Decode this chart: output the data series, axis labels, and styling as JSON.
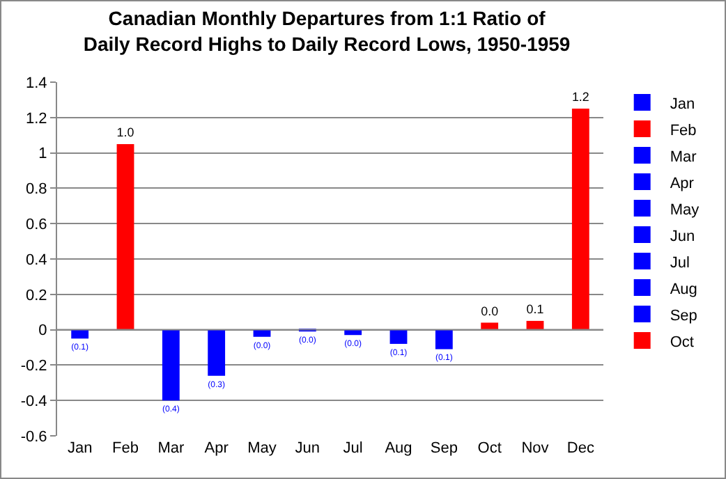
{
  "chart_data": {
    "type": "bar",
    "title": "Canadian Monthly Departures from 1:1 Ratio of\nDaily Record Highs to Daily Record Lows, 1950-1959",
    "categories": [
      "Jan",
      "Feb",
      "Mar",
      "Apr",
      "May",
      "Jun",
      "Jul",
      "Aug",
      "Sep",
      "Oct",
      "Nov",
      "Dec"
    ],
    "series": [
      {
        "name": "Jan",
        "color": "#0000ff",
        "values": [
          -0.05,
          null,
          null,
          null,
          null,
          null,
          null,
          null,
          null,
          null,
          null,
          null
        ],
        "value_labels": [
          "(0.1)",
          null,
          null,
          null,
          null,
          null,
          null,
          null,
          null,
          null,
          null,
          null
        ]
      },
      {
        "name": "Feb",
        "color": "#ff0000",
        "values": [
          null,
          1.05,
          null,
          null,
          null,
          null,
          null,
          null,
          null,
          null,
          null,
          null
        ],
        "value_labels": [
          null,
          "1.0",
          null,
          null,
          null,
          null,
          null,
          null,
          null,
          null,
          null,
          null
        ]
      },
      {
        "name": "Mar",
        "color": "#0000ff",
        "values": [
          null,
          null,
          -0.4,
          null,
          null,
          null,
          null,
          null,
          null,
          null,
          null,
          null
        ],
        "value_labels": [
          null,
          null,
          "(0.4)",
          null,
          null,
          null,
          null,
          null,
          null,
          null,
          null,
          null
        ]
      },
      {
        "name": "Apr",
        "color": "#0000ff",
        "values": [
          null,
          null,
          null,
          -0.26,
          null,
          null,
          null,
          null,
          null,
          null,
          null,
          null
        ],
        "value_labels": [
          null,
          null,
          null,
          "(0.3)",
          null,
          null,
          null,
          null,
          null,
          null,
          null,
          null
        ]
      },
      {
        "name": "May",
        "color": "#0000ff",
        "values": [
          null,
          null,
          null,
          null,
          -0.04,
          null,
          null,
          null,
          null,
          null,
          null,
          null
        ],
        "value_labels": [
          null,
          null,
          null,
          null,
          "(0.0)",
          null,
          null,
          null,
          null,
          null,
          null,
          null
        ]
      },
      {
        "name": "Jun",
        "color": "#0000ff",
        "values": [
          null,
          null,
          null,
          null,
          null,
          -0.01,
          null,
          null,
          null,
          null,
          null,
          null
        ],
        "value_labels": [
          null,
          null,
          null,
          null,
          null,
          "(0.0)",
          null,
          null,
          null,
          null,
          null,
          null
        ]
      },
      {
        "name": "Jul",
        "color": "#0000ff",
        "values": [
          null,
          null,
          null,
          null,
          null,
          null,
          -0.03,
          null,
          null,
          null,
          null,
          null
        ],
        "value_labels": [
          null,
          null,
          null,
          null,
          null,
          null,
          "(0.0)",
          null,
          null,
          null,
          null,
          null
        ]
      },
      {
        "name": "Aug",
        "color": "#0000ff",
        "values": [
          null,
          null,
          null,
          null,
          null,
          null,
          null,
          -0.08,
          null,
          null,
          null,
          null
        ],
        "value_labels": [
          null,
          null,
          null,
          null,
          null,
          null,
          null,
          "(0.1)",
          null,
          null,
          null,
          null
        ]
      },
      {
        "name": "Sep",
        "color": "#0000ff",
        "values": [
          null,
          null,
          null,
          null,
          null,
          null,
          null,
          null,
          -0.11,
          null,
          null,
          null
        ],
        "value_labels": [
          null,
          null,
          null,
          null,
          null,
          null,
          null,
          null,
          "(0.1)",
          null,
          null,
          null
        ]
      },
      {
        "name": "Oct",
        "color": "#ff0000",
        "values": [
          null,
          null,
          null,
          null,
          null,
          null,
          null,
          null,
          null,
          0.04,
          null,
          null
        ],
        "value_labels": [
          null,
          null,
          null,
          null,
          null,
          null,
          null,
          null,
          null,
          "0.0",
          null,
          null
        ]
      },
      {
        "color": "#ff0000",
        "values": [
          null,
          null,
          null,
          null,
          null,
          null,
          null,
          null,
          null,
          null,
          0.05,
          null
        ],
        "value_labels": [
          null,
          null,
          null,
          null,
          null,
          null,
          null,
          null,
          null,
          null,
          "0.1",
          null
        ]
      },
      {
        "color": "#ff0000",
        "values": [
          null,
          null,
          null,
          null,
          null,
          null,
          null,
          null,
          null,
          null,
          null,
          1.25
        ],
        "value_labels": [
          null,
          null,
          null,
          null,
          null,
          null,
          null,
          null,
          null,
          null,
          null,
          "1.2"
        ]
      }
    ],
    "ylim": [
      -0.6,
      1.4
    ],
    "yticks": [
      -0.6,
      -0.4,
      -0.2,
      0,
      0.2,
      0.4,
      0.6,
      0.8,
      1,
      1.2,
      1.4
    ],
    "grid": "y",
    "legend": "right"
  }
}
